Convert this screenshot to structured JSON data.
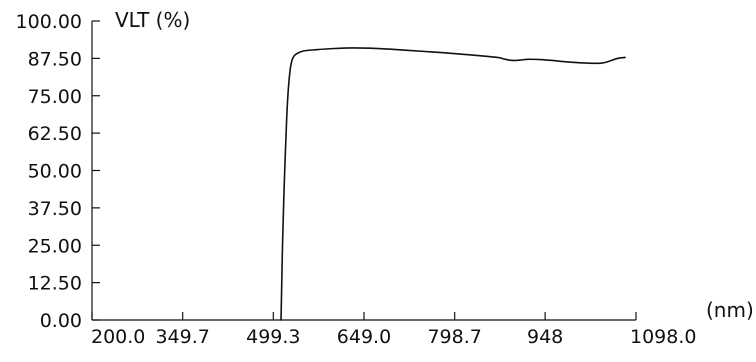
{
  "chart_data": {
    "type": "line",
    "title": "",
    "ylabel": "VLT (%)",
    "xlabel": "(nm)",
    "xlim": [
      200.0,
      1098.0
    ],
    "ylim": [
      0.0,
      100.0
    ],
    "x_ticks": [
      200.0,
      349.7,
      499.3,
      649.0,
      798.7,
      948.0,
      1098.0
    ],
    "x_tick_labels": [
      "200.0",
      "349.7",
      "499.3",
      "649.0",
      "798.7",
      "948",
      "1098.0"
    ],
    "y_ticks": [
      0.0,
      12.5,
      25.0,
      37.5,
      50.0,
      62.5,
      75.0,
      87.5,
      100.0
    ],
    "y_tick_labels": [
      "0.00",
      "12.50",
      "25.00",
      "37.50",
      "50.00",
      "62.50",
      "75.00",
      "87.50",
      "100.00"
    ],
    "grid": false,
    "series": [
      {
        "color": "#111111",
        "x": [
          512.0,
          513.0,
          514.5,
          516.5,
          519.0,
          521.5,
          524.0,
          527.0,
          530.0,
          534.0,
          540.0,
          550.0,
          570.0,
          600.0,
          630.0,
          660.0,
          690.0,
          720.0,
          750.0,
          780.0,
          810.0,
          840.0,
          870.0,
          880.0,
          890.0,
          900.0,
          910.0,
          920.0,
          940.0,
          960.0,
          980.0,
          1000.0,
          1020.0,
          1040.0,
          1050.0,
          1060.0,
          1070.0,
          1080.0
        ],
        "y": [
          0.0,
          10.0,
          25.0,
          40.0,
          55.0,
          68.0,
          77.0,
          83.5,
          86.8,
          88.4,
          89.3,
          90.0,
          90.4,
          90.8,
          91.0,
          90.9,
          90.6,
          90.2,
          89.8,
          89.4,
          88.9,
          88.4,
          87.8,
          87.3,
          86.9,
          86.8,
          87.0,
          87.2,
          87.1,
          86.8,
          86.4,
          86.1,
          85.9,
          85.9,
          86.3,
          87.0,
          87.6,
          87.8
        ]
      }
    ]
  }
}
